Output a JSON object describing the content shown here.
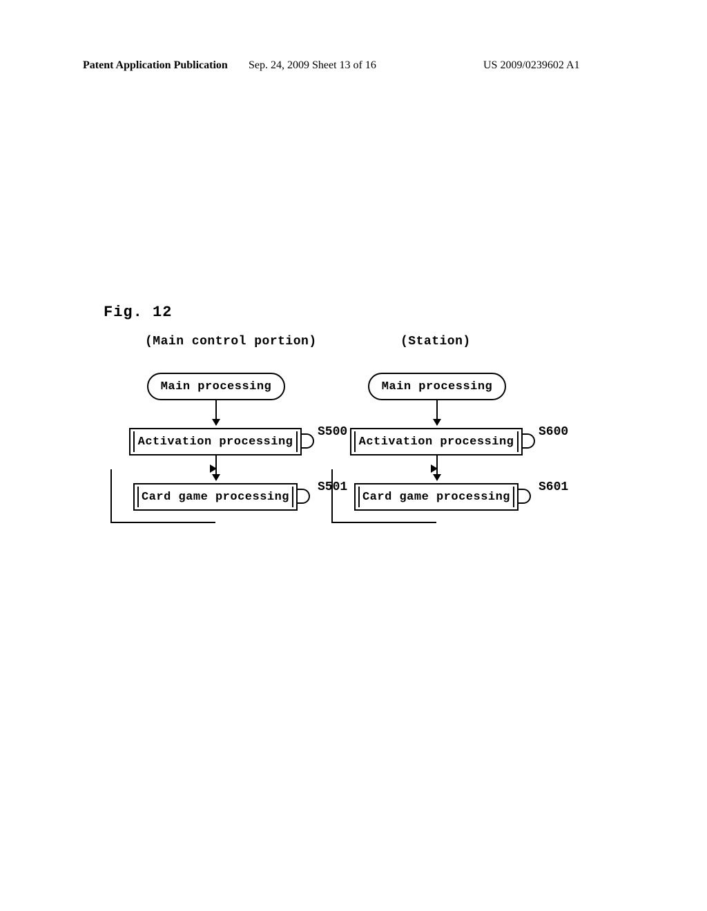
{
  "header": {
    "left": "Patent Application Publication",
    "center": "Sep. 24, 2009  Sheet 13 of 16",
    "right": "US 2009/0239602 A1"
  },
  "figure_label": "Fig. 12",
  "columns": {
    "left": {
      "header": "(Main control portion)",
      "start": "Main processing",
      "step1": {
        "label": "Activation processing",
        "ref": "S500"
      },
      "step2": {
        "label": "Card game processing",
        "ref": "S501"
      }
    },
    "right": {
      "header": "(Station)",
      "start": "Main processing",
      "step1": {
        "label": "Activation processing",
        "ref": "S600"
      },
      "step2": {
        "label": "Card game processing",
        "ref": "S601"
      }
    }
  }
}
